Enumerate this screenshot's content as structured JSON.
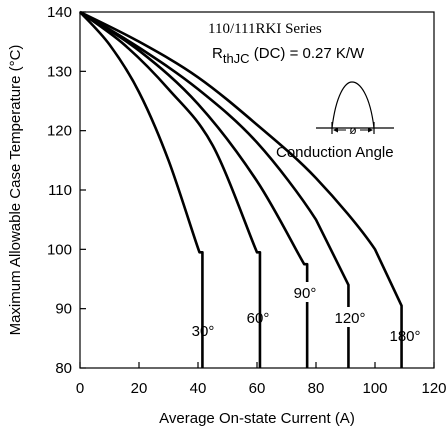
{
  "chart_data": {
    "type": "line",
    "title": "",
    "xlabel": "Average On-state Current (A)",
    "ylabel": "Maximum Allowable Case Temperature (°C)",
    "xlim": [
      0,
      120
    ],
    "ylim": [
      80,
      140
    ],
    "x_ticks": [
      0,
      20,
      40,
      60,
      80,
      100,
      120
    ],
    "y_ticks": [
      80,
      90,
      100,
      110,
      120,
      130,
      140
    ],
    "grid": false,
    "series": [
      {
        "name": "30°",
        "x": [
          0,
          10,
          20,
          30,
          40.5,
          41.5,
          41.5
        ],
        "y": [
          140,
          134.5,
          126.5,
          115,
          99.5,
          99.5,
          80
        ]
      },
      {
        "name": "60°",
        "x": [
          0,
          15,
          30,
          45,
          60,
          61,
          61
        ],
        "y": [
          140,
          134.5,
          127,
          117.5,
          99.5,
          99.5,
          80
        ]
      },
      {
        "name": "90°",
        "x": [
          0,
          20,
          40,
          60,
          76,
          77,
          77
        ],
        "y": [
          140,
          133.5,
          124.5,
          111.5,
          97.5,
          97.5,
          80
        ]
      },
      {
        "name": "120°",
        "x": [
          0,
          20,
          40,
          60,
          80,
          91,
          91
        ],
        "y": [
          140,
          134,
          127,
          118,
          105,
          94,
          80
        ]
      },
      {
        "name": "180°",
        "x": [
          0,
          20,
          40,
          60,
          80,
          100,
          109,
          109
        ],
        "y": [
          140,
          135,
          129,
          121,
          112,
          100,
          90.5,
          80
        ]
      }
    ],
    "annotations": {
      "series_title": "110/111RKI Series",
      "rth_main": "R",
      "rth_sub": "thJC",
      "rth_rest": " (DC) = 0.27 K/W",
      "phi": "ø",
      "conduction_label": "Conduction Angle"
    }
  }
}
